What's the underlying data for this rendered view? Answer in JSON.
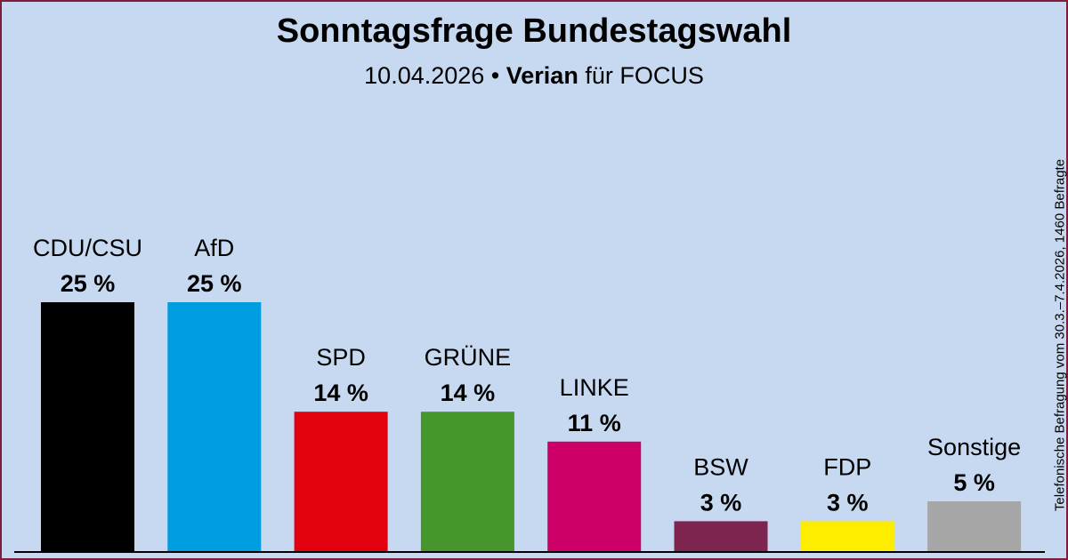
{
  "header": {
    "title": "Sonntagsfrage Bundestagswahl",
    "date": "10.04.2026",
    "separator": " • ",
    "source": "Verian",
    "client_text": " für FOCUS"
  },
  "side_note": "Telefonische Befragung vom 30.3.–7.4.2026, 1460 Befragte",
  "chart_data": {
    "type": "bar",
    "title": "Sonntagsfrage Bundestagswahl",
    "categories": [
      "CDU/CSU",
      "AfD",
      "SPD",
      "GRÜNE",
      "LINKE",
      "BSW",
      "FDP",
      "Sonstige"
    ],
    "values": [
      25,
      25,
      14,
      14,
      11,
      3,
      3,
      5
    ],
    "value_labels": [
      "25 %",
      "25 %",
      "14 %",
      "14 %",
      "11 %",
      "3 %",
      "3 %",
      "5 %"
    ],
    "colors": [
      "#000000",
      "#009ee0",
      "#e3000f",
      "#46962b",
      "#cc0066",
      "#7d254f",
      "#ffed00",
      "#a6a6a6"
    ],
    "xlabel": "",
    "ylabel": "",
    "ylim": [
      0,
      25
    ],
    "grid": false,
    "legend": "none"
  },
  "colors": {
    "background": "#c6d9f1",
    "border": "#7f1d3f",
    "baseline": "#000000"
  }
}
